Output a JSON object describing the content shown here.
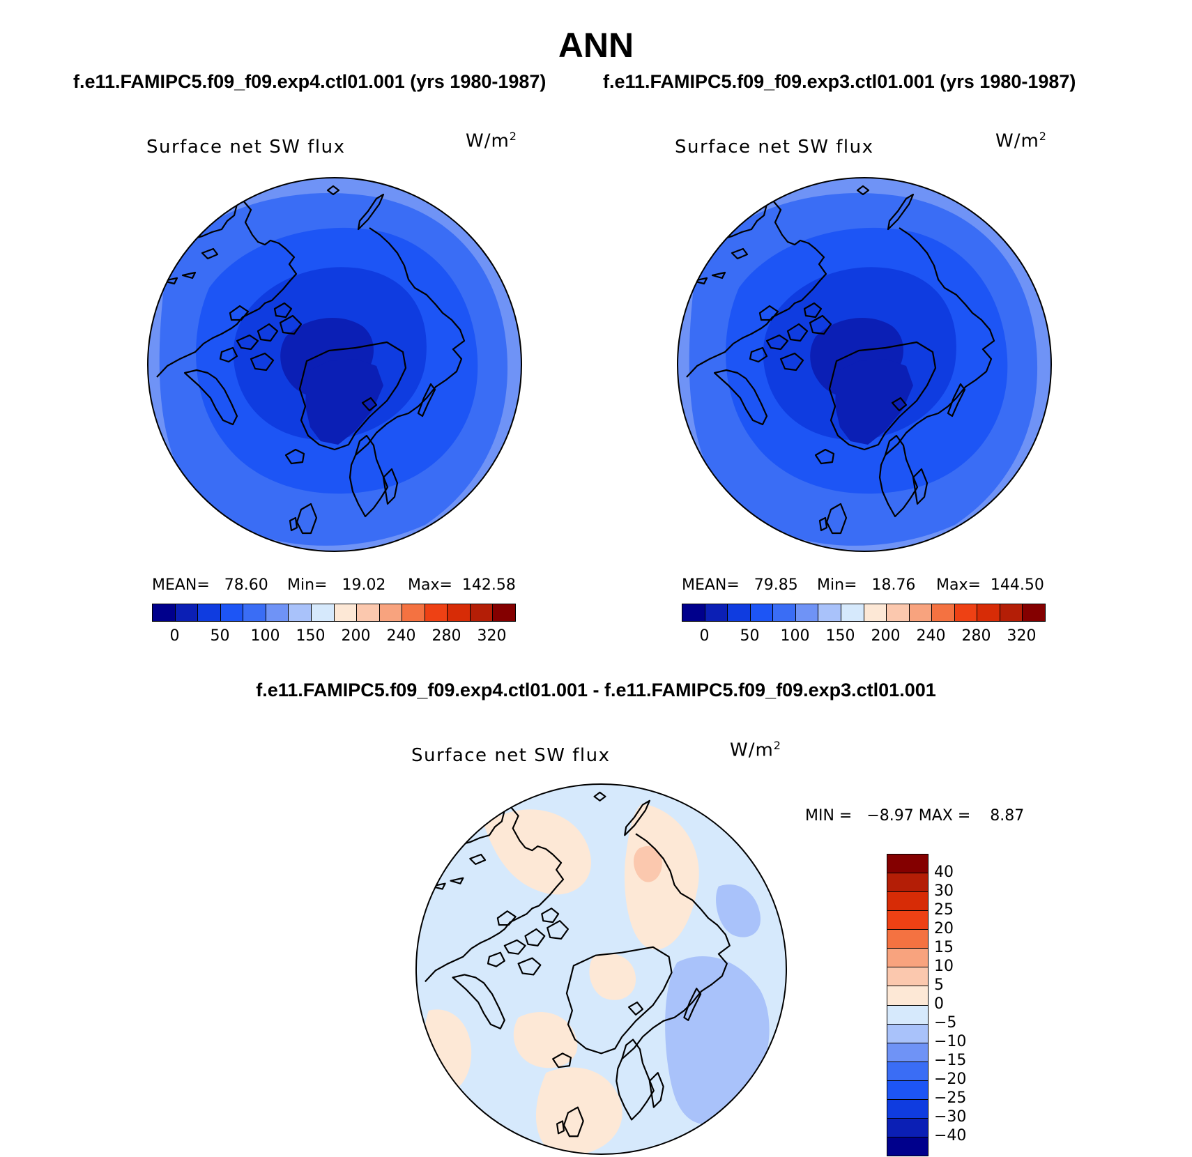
{
  "page": {
    "title": "ANN",
    "case1_title": "f.e11.FAMIPC5.f09_f09.exp4.ctl01.001 (yrs 1980-1987)",
    "case2_title": "f.e11.FAMIPC5.f09_f09.exp3.ctl01.001 (yrs 1980-1987)",
    "diff_title": "f.e11.FAMIPC5.f09_f09.exp4.ctl01.001 - f.e11.FAMIPC5.f09_f09.exp3.ctl01.001"
  },
  "panels": [
    {
      "variable": "Surface net SW flux",
      "units": "W/m",
      "units_exp": "2",
      "stats": {
        "mean": "MEAN=   78.60",
        "min": "Min=   19.02",
        "max": "Max=  142.58"
      }
    },
    {
      "variable": "Surface net SW flux",
      "units": "W/m",
      "units_exp": "2",
      "stats": {
        "mean": "MEAN=   79.85",
        "min": "Min=   18.76",
        "max": "Max=  144.50"
      }
    }
  ],
  "diff_panel": {
    "variable": "Surface net SW flux",
    "units": "W/m",
    "units_exp": "2",
    "stats": "MIN =   −8.97 MAX =    8.87"
  },
  "colorbar_main": {
    "colors": [
      "#00008c",
      "#0b1fb5",
      "#0f3ce0",
      "#1d55f5",
      "#3a6df5",
      "#6f93f6",
      "#a9c2fa",
      "#d6e9fc",
      "#fde8d6",
      "#fbc8ae",
      "#f8a37e",
      "#f47241",
      "#ee4114",
      "#d72c06",
      "#b41e06",
      "#840000"
    ],
    "labels": [
      "0",
      "50",
      "100",
      "150",
      "200",
      "240",
      "280",
      "320"
    ]
  },
  "colorbar_diff": {
    "colors": [
      "#840000",
      "#b41e06",
      "#d72c06",
      "#ee4114",
      "#f47241",
      "#f8a37e",
      "#fbc8ae",
      "#fde8d6",
      "#d6e9fc",
      "#a9c2fa",
      "#6f93f6",
      "#3a6df5",
      "#1d55f5",
      "#0f3ce0",
      "#0b1fb5",
      "#00008c"
    ],
    "labels": [
      "40",
      "30",
      "25",
      "20",
      "15",
      "10",
      "5",
      "0",
      "−5",
      "−10",
      "−15",
      "−20",
      "−25",
      "−30",
      "−40"
    ]
  },
  "map_colors": {
    "p1": [
      "#6f93f6",
      "#3a6df5",
      "#1d55f5",
      "#0f3ce0",
      "#0b1fb5"
    ],
    "p2": [
      "#6f93f6",
      "#3a6df5",
      "#1d55f5",
      "#0f3ce0",
      "#0b1fb5"
    ],
    "diff": [
      "#d6e9fc",
      "#fde8d6",
      "#a9c2fa",
      "#fbc8ae"
    ]
  }
}
